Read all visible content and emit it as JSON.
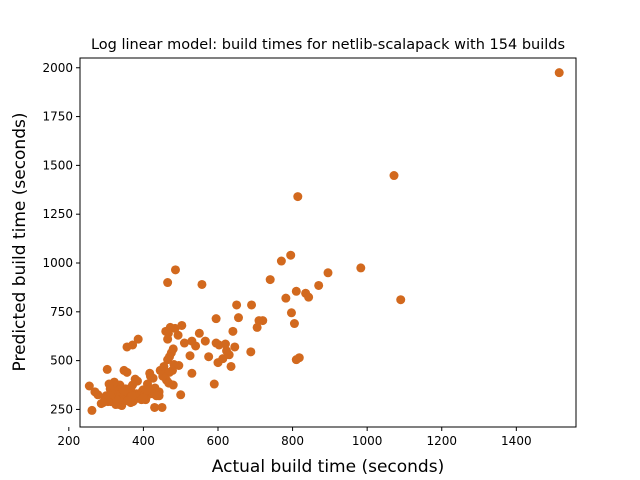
{
  "chart_data": {
    "type": "scatter",
    "title": "Log linear model: build times for netlib-scalapack with 154 builds",
    "xlabel": "Actual build time (seconds)",
    "ylabel": "Predicted build time (seconds)",
    "xlim": [
      230,
      1560
    ],
    "ylim": [
      160,
      2050
    ],
    "xticks": [
      200,
      400,
      600,
      800,
      1000,
      1200,
      1400
    ],
    "yticks": [
      250,
      500,
      750,
      1000,
      1250,
      1500,
      1750,
      2000
    ],
    "grid": false,
    "marker_color": "#d2691e",
    "points": [
      [
        1515,
        1975
      ],
      [
        1072,
        1448
      ],
      [
        814,
        1340
      ],
      [
        1090,
        812
      ],
      [
        983,
        975
      ],
      [
        895,
        950
      ],
      [
        795,
        1040
      ],
      [
        770,
        1010
      ],
      [
        740,
        915
      ],
      [
        870,
        885
      ],
      [
        835,
        845
      ],
      [
        843,
        825
      ],
      [
        782,
        820
      ],
      [
        810,
        855
      ],
      [
        797,
        745
      ],
      [
        805,
        690
      ],
      [
        810,
        505
      ],
      [
        818,
        515
      ],
      [
        720,
        705
      ],
      [
        710,
        705
      ],
      [
        705,
        670
      ],
      [
        688,
        545
      ],
      [
        690,
        785
      ],
      [
        650,
        785
      ],
      [
        655,
        720
      ],
      [
        640,
        650
      ],
      [
        645,
        570
      ],
      [
        620,
        585
      ],
      [
        595,
        715
      ],
      [
        595,
        590
      ],
      [
        603,
        580
      ],
      [
        600,
        490
      ],
      [
        590,
        380
      ],
      [
        613,
        510
      ],
      [
        623,
        550
      ],
      [
        630,
        530
      ],
      [
        635,
        470
      ],
      [
        575,
        520
      ],
      [
        566,
        600
      ],
      [
        550,
        640
      ],
      [
        540,
        575
      ],
      [
        530,
        600
      ],
      [
        525,
        525
      ],
      [
        530,
        435
      ],
      [
        510,
        590
      ],
      [
        503,
        680
      ],
      [
        493,
        630
      ],
      [
        485,
        665
      ],
      [
        495,
        475
      ],
      [
        500,
        325
      ],
      [
        472,
        670
      ],
      [
        467,
        640
      ],
      [
        465,
        610
      ],
      [
        460,
        650
      ],
      [
        480,
        560
      ],
      [
        475,
        540
      ],
      [
        470,
        520
      ],
      [
        465,
        505
      ],
      [
        482,
        480
      ],
      [
        478,
        450
      ],
      [
        470,
        440
      ],
      [
        462,
        400
      ],
      [
        468,
        385
      ],
      [
        458,
        445
      ],
      [
        452,
        420
      ],
      [
        480,
        375
      ],
      [
        465,
        900
      ],
      [
        486,
        965
      ],
      [
        557,
        890
      ],
      [
        450,
        260
      ],
      [
        430,
        260
      ],
      [
        442,
        320
      ],
      [
        442,
        340
      ],
      [
        431,
        360
      ],
      [
        426,
        410
      ],
      [
        419,
        420
      ],
      [
        417,
        435
      ],
      [
        411,
        380
      ],
      [
        406,
        300
      ],
      [
        399,
        350
      ],
      [
        394,
        305
      ],
      [
        386,
        610
      ],
      [
        371,
        580
      ],
      [
        356,
        570
      ],
      [
        356,
        440
      ],
      [
        348,
        450
      ],
      [
        378,
        405
      ],
      [
        381,
        330
      ],
      [
        384,
        395
      ],
      [
        371,
        375
      ],
      [
        366,
        360
      ],
      [
        352,
        355
      ],
      [
        337,
        375
      ],
      [
        332,
        340
      ],
      [
        328,
        360
      ],
      [
        322,
        390
      ],
      [
        318,
        380
      ],
      [
        308,
        380
      ],
      [
        303,
        455
      ],
      [
        311,
        355
      ],
      [
        300,
        320
      ],
      [
        296,
        310
      ],
      [
        298,
        295
      ],
      [
        287,
        280
      ],
      [
        278,
        325
      ],
      [
        270,
        340
      ],
      [
        255,
        370
      ],
      [
        262,
        245
      ],
      [
        313,
        290
      ],
      [
        318,
        300
      ],
      [
        322,
        310
      ],
      [
        326,
        275
      ],
      [
        330,
        280
      ],
      [
        336,
        275
      ],
      [
        342,
        270
      ],
      [
        346,
        290
      ],
      [
        350,
        300
      ],
      [
        354,
        310
      ],
      [
        358,
        320
      ],
      [
        362,
        330
      ],
      [
        343,
        315
      ],
      [
        338,
        330
      ],
      [
        334,
        300
      ],
      [
        366,
        285
      ],
      [
        372,
        290
      ],
      [
        376,
        300
      ],
      [
        380,
        310
      ],
      [
        385,
        320
      ],
      [
        390,
        330
      ],
      [
        396,
        340
      ],
      [
        402,
        325
      ],
      [
        408,
        315
      ],
      [
        414,
        330
      ],
      [
        420,
        345
      ],
      [
        425,
        330
      ],
      [
        360,
        300
      ],
      [
        365,
        310
      ],
      [
        370,
        320
      ],
      [
        330,
        295
      ],
      [
        326,
        305
      ],
      [
        316,
        330
      ],
      [
        312,
        320
      ],
      [
        305,
        290
      ],
      [
        300,
        300
      ],
      [
        292,
        285
      ],
      [
        344,
        355
      ],
      [
        348,
        345
      ],
      [
        357,
        295
      ],
      [
        395,
        300
      ],
      [
        400,
        310
      ],
      [
        410,
        350
      ],
      [
        435,
        320
      ],
      [
        445,
        450
      ],
      [
        455,
        470
      ]
    ]
  }
}
